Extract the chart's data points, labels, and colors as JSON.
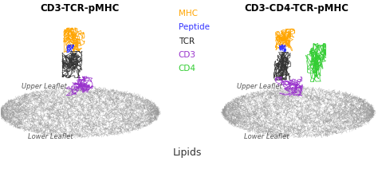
{
  "title_left": "CD3-TCR-pMHC",
  "title_right": "CD3-CD4-TCR-pMHC",
  "legend_items": [
    {
      "label": "MHC",
      "color": "#FFA500"
    },
    {
      "label": "Peptide",
      "color": "#3333FF"
    },
    {
      "label": "TCR",
      "color": "#222222"
    },
    {
      "label": "CD3",
      "color": "#9932CC"
    },
    {
      "label": "CD4",
      "color": "#32CD32"
    }
  ],
  "upper_leaflet_label": "Upper Leaflet",
  "lower_leaflet_label": "Lower Leaflet",
  "lipids_label": "Lipids",
  "bg_color": "#FFFFFF",
  "lipid_color": "#999999",
  "title_fontsize": 8.5,
  "legend_fontsize": 7.5,
  "label_fontsize": 6.0
}
